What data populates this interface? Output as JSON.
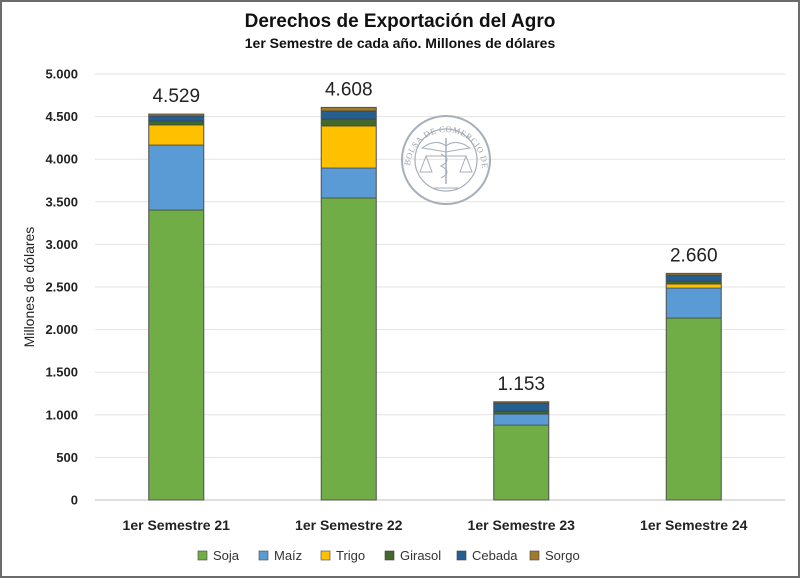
{
  "chart_data": {
    "type": "bar",
    "stacked": true,
    "title": "Derechos de Exportación del Agro",
    "subtitle": "1er Semestre de cada año. Millones de dólares",
    "xlabel": "",
    "ylabel": "Millones de dólares",
    "ylim": [
      0,
      5000
    ],
    "yticks": [
      0,
      500,
      1000,
      1500,
      2000,
      2500,
      3000,
      3500,
      4000,
      4500,
      5000
    ],
    "ytick_labels": [
      "0",
      "500",
      "1.000",
      "1.500",
      "2.000",
      "2.500",
      "3.000",
      "3.500",
      "4.000",
      "4.500",
      "5.000"
    ],
    "grid": true,
    "legend_position": "bottom",
    "categories": [
      "1er Semestre 21",
      "1er Semestre 22",
      "1er Semestre 23",
      "1er Semestre 24"
    ],
    "totals": [
      4529,
      4608,
      1153,
      2660
    ],
    "total_labels": [
      "4.529",
      "4.608",
      "1.153",
      "2.660"
    ],
    "series": [
      {
        "name": "Soja",
        "color": "#70ad47",
        "values": [
          3404,
          3545,
          880,
          2136
        ]
      },
      {
        "name": "Maíz",
        "color": "#5b9bd5",
        "values": [
          763,
          352,
          129,
          352
        ]
      },
      {
        "name": "Trigo",
        "color": "#ffc000",
        "values": [
          235,
          493,
          0,
          47
        ]
      },
      {
        "name": "Girasol",
        "color": "#43682b",
        "values": [
          47,
          82,
          35,
          35
        ]
      },
      {
        "name": "Cebada",
        "color": "#255e91",
        "values": [
          58,
          94,
          94,
          70
        ]
      },
      {
        "name": "Sorgo",
        "color": "#9e7b2f",
        "values": [
          22,
          42,
          15,
          20
        ]
      }
    ]
  },
  "watermark": {
    "text": "BOLSA DE COMERCIO DE ROSARIO"
  }
}
